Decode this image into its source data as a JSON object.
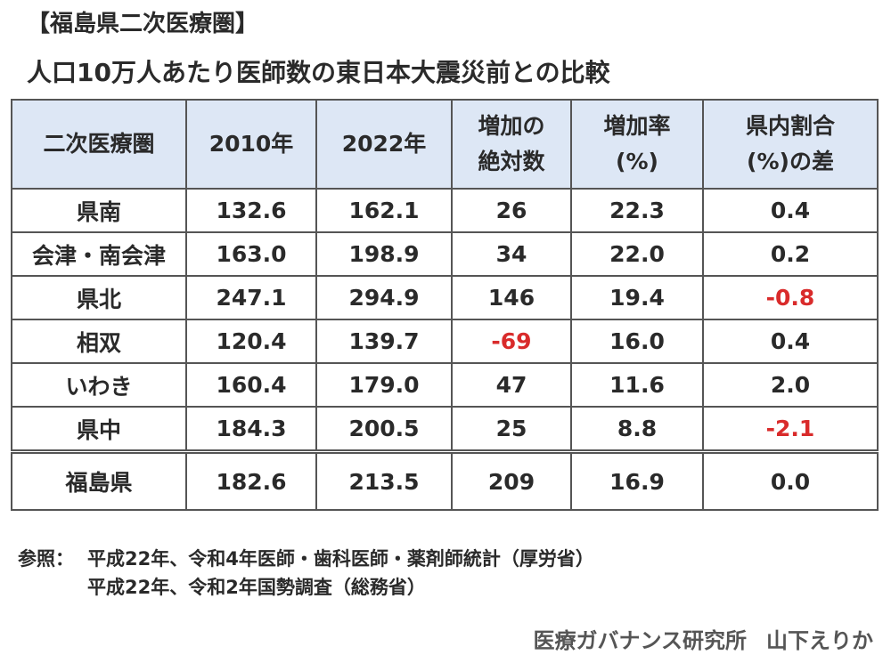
{
  "heading": "【福島県二次医療圏】",
  "subtitle": "人口10万人あたり医師数の東日本大震災前との比較",
  "table": {
    "headers": [
      [
        "二次医療圏"
      ],
      [
        "2010年"
      ],
      [
        "2022年"
      ],
      [
        "増加の",
        "絶対数"
      ],
      [
        "増加率",
        "(%)"
      ],
      [
        "県内割合",
        "(%)の差"
      ]
    ],
    "rows": [
      {
        "cells": [
          "県南",
          "132.6",
          "162.1",
          "26",
          "22.3",
          "0.4"
        ]
      },
      {
        "cells": [
          "会津・南会津",
          "163.0",
          "198.9",
          "34",
          "22.0",
          "0.2"
        ]
      },
      {
        "cells": [
          "県北",
          "247.1",
          "294.9",
          "146",
          "19.4",
          "-0.8"
        ]
      },
      {
        "cells": [
          "相双",
          "120.4",
          "139.7",
          "-69",
          "16.0",
          "0.4"
        ]
      },
      {
        "cells": [
          "いわき",
          "160.4",
          "179.0",
          "47",
          "11.6",
          "2.0"
        ]
      },
      {
        "cells": [
          "県中",
          "184.3",
          "200.5",
          "25",
          "8.8",
          "-2.1"
        ]
      }
    ],
    "total": {
      "cells": [
        "福島県",
        "182.6",
        "213.5",
        "209",
        "16.9",
        "0.0"
      ]
    }
  },
  "notes": {
    "label": "参照：",
    "line1": "平成22年、令和4年医師・歯科医師・薬剤師統計（厚労省）",
    "line2": "平成22年、令和2年国勢調査（総務省）"
  },
  "credit": {
    "org": "医療ガバナンス研究所",
    "author": "山下えりか"
  },
  "colors": {
    "header_bg": "#dde7f5",
    "negative_text": "#d92b2b",
    "border": "#555555"
  }
}
